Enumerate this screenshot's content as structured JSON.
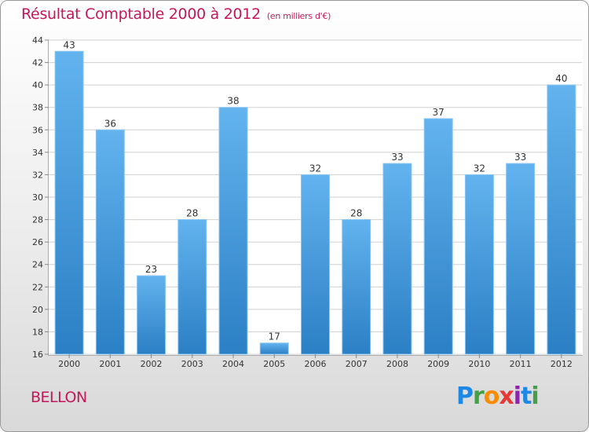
{
  "header": {
    "title": "Résultat Comptable 2000 à 2012",
    "subtitle": "(en milliers d'€)"
  },
  "footer": {
    "city": "BELLON",
    "brand": "Proxiti"
  },
  "colors": {
    "title": "#c2185b",
    "bar_top": "#62b3ee",
    "bar_bottom": "#2b7fc4"
  },
  "chart_data": {
    "type": "bar",
    "title": "Résultat Comptable 2000 à 2012",
    "subtitle": "(en milliers d'€)",
    "xlabel": "",
    "ylabel": "",
    "categories": [
      "2000",
      "2001",
      "2002",
      "2003",
      "2004",
      "2005",
      "2006",
      "2007",
      "2008",
      "2009",
      "2010",
      "2011",
      "2012"
    ],
    "values": [
      43,
      36,
      23,
      28,
      38,
      17,
      32,
      28,
      33,
      37,
      32,
      33,
      40
    ],
    "ylim": [
      16,
      44
    ],
    "yticks": [
      16,
      18,
      20,
      22,
      24,
      26,
      28,
      30,
      32,
      34,
      36,
      38,
      40,
      42,
      44
    ],
    "grid": true,
    "legend": "none"
  }
}
